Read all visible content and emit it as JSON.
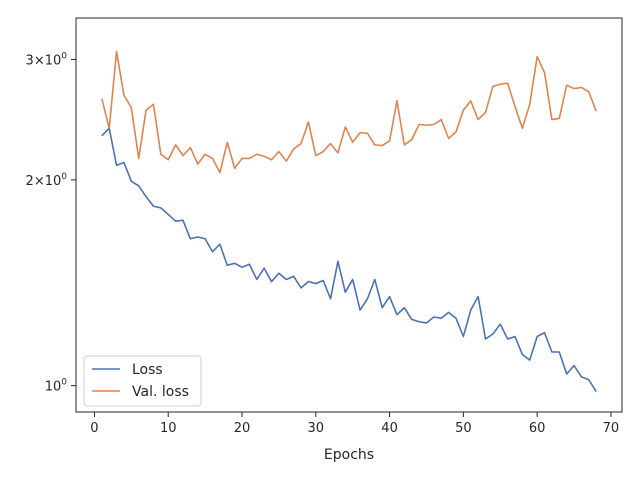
{
  "chart_data": {
    "type": "line",
    "title": "",
    "xlabel": "Epochs",
    "ylabel": "",
    "xlim": [
      -2.5,
      71.5
    ],
    "ylim": [
      0.915,
      3.45
    ],
    "yscale": "log",
    "grid": false,
    "legend_position": "lower-left",
    "x_ticks": [
      0,
      10,
      20,
      30,
      40,
      50,
      60,
      70
    ],
    "x_tick_labels": [
      "0",
      "10",
      "20",
      "30",
      "40",
      "50",
      "60",
      "70"
    ],
    "y_ticks": [
      {
        "value": 3,
        "base": "3",
        "exp": "0"
      },
      {
        "value": 2,
        "base": "2",
        "exp": "0"
      },
      {
        "value": 1,
        "base": "10",
        "exp": "0"
      }
    ],
    "x": [
      1,
      2,
      3,
      4,
      5,
      6,
      7,
      8,
      9,
      10,
      11,
      12,
      13,
      14,
      15,
      16,
      17,
      18,
      19,
      20,
      21,
      22,
      23,
      24,
      25,
      26,
      27,
      28,
      29,
      30,
      31,
      32,
      33,
      34,
      35,
      36,
      37,
      38,
      39,
      40,
      41,
      42,
      43,
      44,
      45,
      46,
      47,
      48,
      49,
      50,
      51,
      52,
      53,
      54,
      55,
      56,
      57,
      58,
      59,
      60,
      61,
      62,
      63,
      64,
      65,
      66,
      67,
      68
    ],
    "series": [
      {
        "name": "Loss",
        "color": "#4c72b0",
        "values": [
          2.32,
          2.38,
          2.1,
          2.12,
          1.99,
          1.96,
          1.89,
          1.83,
          1.82,
          1.78,
          1.74,
          1.745,
          1.64,
          1.65,
          1.64,
          1.57,
          1.61,
          1.5,
          1.51,
          1.49,
          1.505,
          1.43,
          1.485,
          1.42,
          1.46,
          1.43,
          1.445,
          1.39,
          1.42,
          1.41,
          1.425,
          1.34,
          1.52,
          1.37,
          1.43,
          1.29,
          1.34,
          1.43,
          1.3,
          1.35,
          1.27,
          1.3,
          1.25,
          1.24,
          1.235,
          1.26,
          1.255,
          1.28,
          1.255,
          1.18,
          1.29,
          1.35,
          1.17,
          1.19,
          1.23,
          1.17,
          1.18,
          1.11,
          1.09,
          1.18,
          1.195,
          1.12,
          1.12,
          1.04,
          1.07,
          1.03,
          1.02,
          0.98
        ]
      },
      {
        "name": "Val. loss",
        "color": "#dd8452",
        "values": [
          2.63,
          2.38,
          3.08,
          2.66,
          2.55,
          2.15,
          2.53,
          2.58,
          2.18,
          2.14,
          2.25,
          2.17,
          2.23,
          2.11,
          2.18,
          2.15,
          2.05,
          2.27,
          2.08,
          2.15,
          2.15,
          2.18,
          2.165,
          2.14,
          2.2,
          2.13,
          2.22,
          2.26,
          2.43,
          2.17,
          2.2,
          2.26,
          2.19,
          2.39,
          2.27,
          2.345,
          2.34,
          2.25,
          2.245,
          2.28,
          2.61,
          2.25,
          2.29,
          2.41,
          2.405,
          2.41,
          2.45,
          2.3,
          2.35,
          2.53,
          2.61,
          2.45,
          2.51,
          2.74,
          2.76,
          2.77,
          2.56,
          2.38,
          2.58,
          3.03,
          2.87,
          2.45,
          2.46,
          2.75,
          2.72,
          2.73,
          2.69,
          2.52
        ]
      }
    ]
  }
}
